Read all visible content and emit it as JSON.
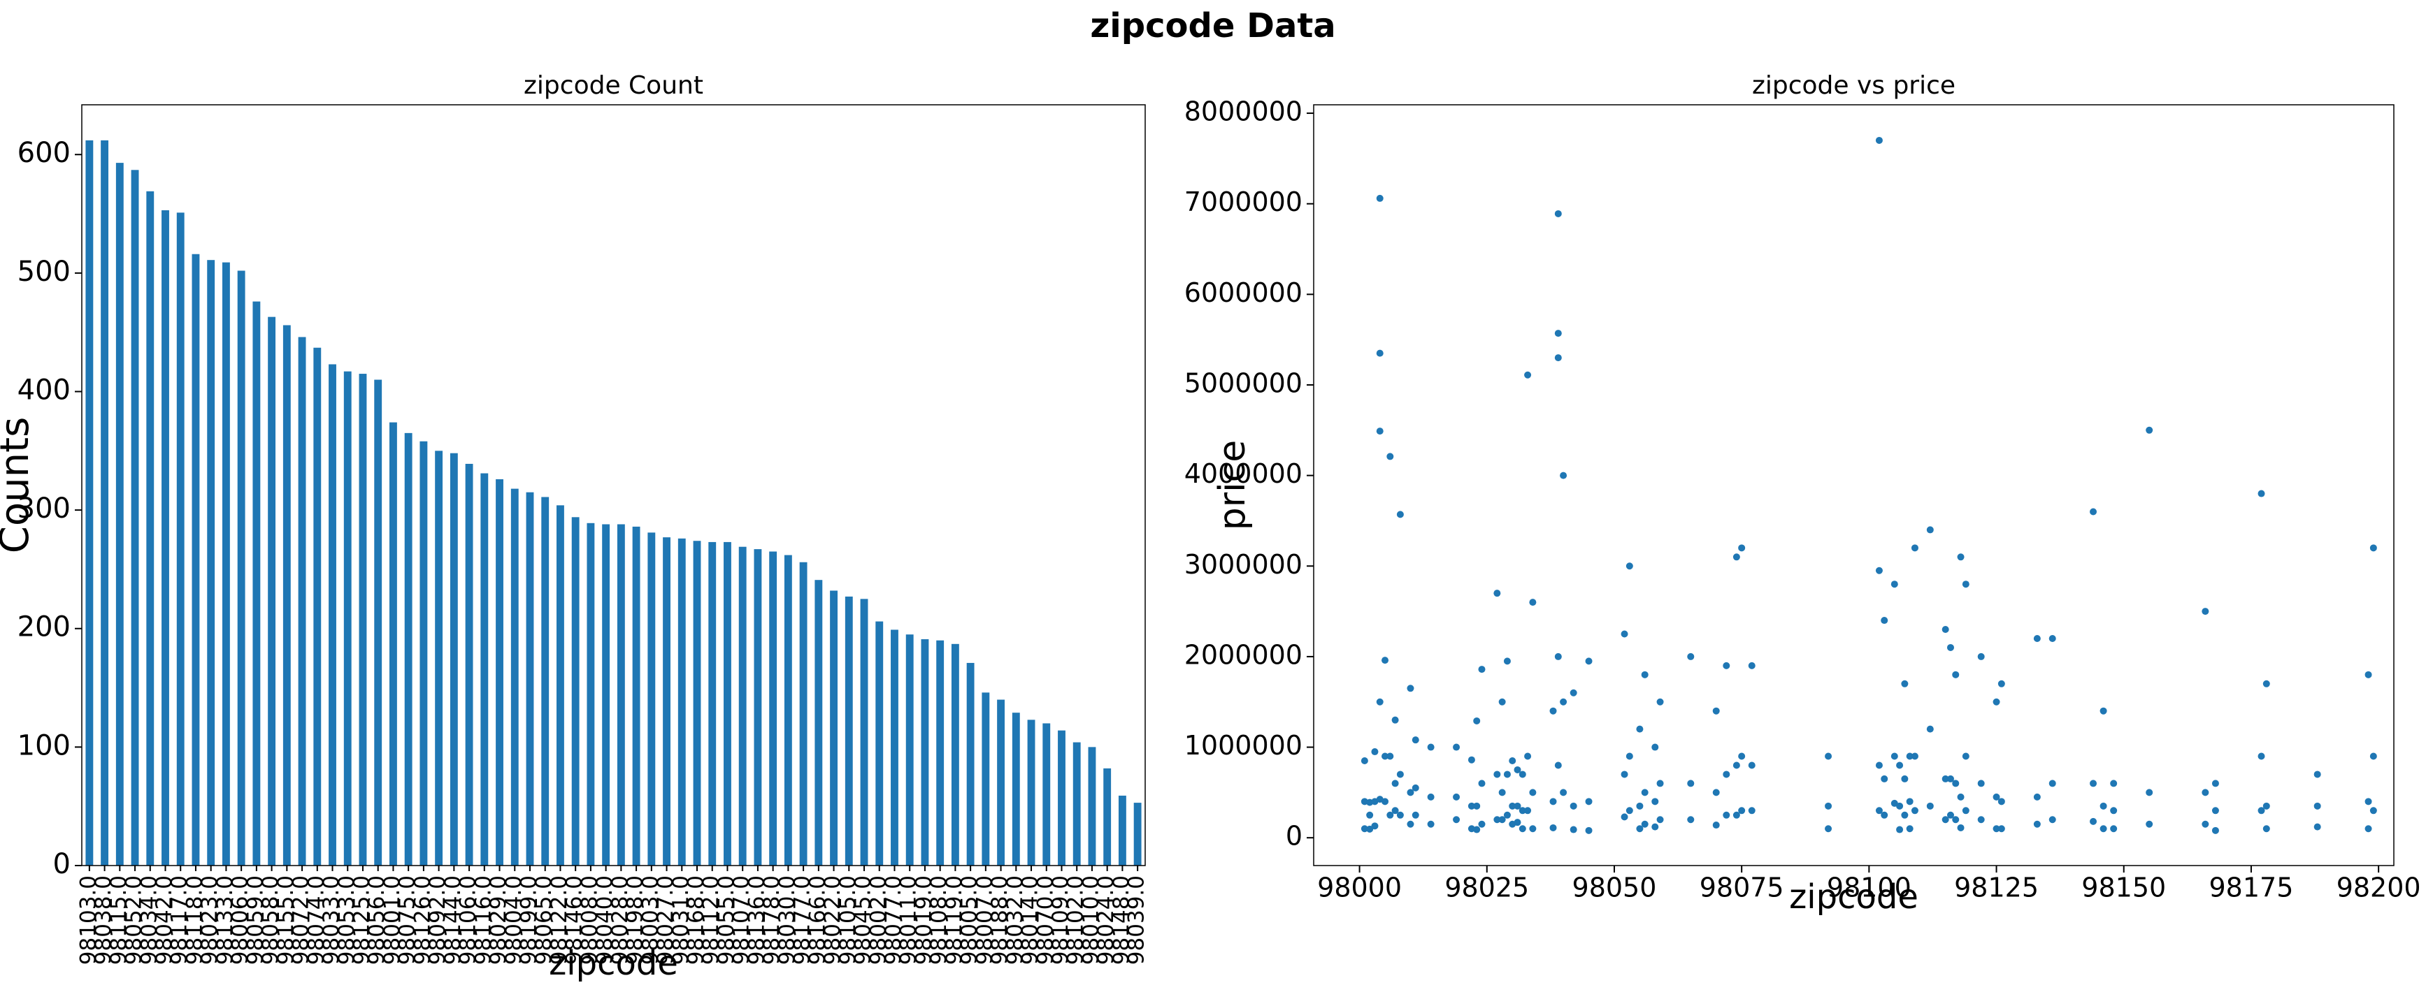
{
  "figure_title": "zipcode Data",
  "chart_data": [
    {
      "type": "bar",
      "title": "zipcode Count",
      "xlabel": "zipcode",
      "ylabel": "Counts",
      "color": "#1f77b4",
      "categories": [
        "98103.0",
        "98038.0",
        "98115.0",
        "98052.0",
        "98034.0",
        "98042.0",
        "98117.0",
        "98118.0",
        "98023.0",
        "98133.0",
        "98006.0",
        "98059.0",
        "98058.0",
        "98155.0",
        "98072.0",
        "98074.0",
        "98033.0",
        "98053.0",
        "98125.0",
        "98056.0",
        "98001.0",
        "98075.0",
        "98126.0",
        "98092.0",
        "98144.0",
        "98106.0",
        "98116.0",
        "98029.0",
        "98004.0",
        "98199.0",
        "98065.0",
        "98122.0",
        "98146.0",
        "98008.0",
        "98040.0",
        "98028.0",
        "98198.0",
        "98003.0",
        "98027.0",
        "98031.0",
        "98168.0",
        "98112.0",
        "98055.0",
        "98107.0",
        "98136.0",
        "98178.0",
        "98030.0",
        "98177.0",
        "98166.0",
        "98022.0",
        "98105.0",
        "98045.0",
        "98002.0",
        "98077.0",
        "98011.0",
        "98019.0",
        "98108.0",
        "98119.0",
        "98005.0",
        "98007.0",
        "98188.0",
        "98032.0",
        "98014.0",
        "98070.0",
        "98109.0",
        "98102.0",
        "98010.0",
        "98024.0",
        "98148.0",
        "98039.0"
      ],
      "values": [
        612,
        612,
        593,
        587,
        569,
        553,
        551,
        516,
        511,
        509,
        502,
        476,
        463,
        456,
        446,
        437,
        423,
        417,
        415,
        410,
        374,
        365,
        358,
        350,
        348,
        339,
        331,
        326,
        318,
        315,
        311,
        304,
        294,
        289,
        288,
        288,
        286,
        281,
        277,
        276,
        274,
        273,
        273,
        269,
        267,
        265,
        262,
        256,
        241,
        232,
        227,
        225,
        206,
        199,
        195,
        191,
        190,
        187,
        171,
        146,
        140,
        129,
        123,
        120,
        114,
        104,
        100,
        82,
        59,
        53
      ],
      "ylim": [
        0,
        642
      ],
      "yticks": [
        0,
        100,
        200,
        300,
        400,
        500,
        600
      ]
    },
    {
      "type": "scatter",
      "title": "zipcode vs price",
      "xlabel": "zipcode",
      "ylabel": "price",
      "color": "#1f77b4",
      "x": [
        98001,
        98001,
        98001,
        98002,
        98002,
        98002,
        98003,
        98003,
        98003,
        98004,
        98004,
        98004,
        98004,
        98004,
        98005,
        98005,
        98005,
        98006,
        98006,
        98006,
        98007,
        98007,
        98007,
        98008,
        98008,
        98008,
        98010,
        98010,
        98010,
        98011,
        98011,
        98011,
        98014,
        98014,
        98014,
        98019,
        98019,
        98019,
        98022,
        98022,
        98022,
        98023,
        98023,
        98023,
        98024,
        98024,
        98024,
        98027,
        98027,
        98027,
        98028,
        98028,
        98028,
        98029,
        98029,
        98029,
        98030,
        98030,
        98030,
        98031,
        98031,
        98031,
        98032,
        98032,
        98032,
        98033,
        98033,
        98033,
        98034,
        98034,
        98034,
        98038,
        98038,
        98038,
        98039,
        98039,
        98039,
        98039,
        98039,
        98040,
        98040,
        98040,
        98042,
        98042,
        98042,
        98045,
        98045,
        98045,
        98052,
        98052,
        98052,
        98053,
        98053,
        98053,
        98055,
        98055,
        98055,
        98056,
        98056,
        98056,
        98058,
        98058,
        98058,
        98059,
        98059,
        98059,
        98065,
        98065,
        98065,
        98070,
        98070,
        98070,
        98072,
        98072,
        98072,
        98074,
        98074,
        98074,
        98075,
        98075,
        98075,
        98077,
        98077,
        98077,
        98092,
        98092,
        98092,
        98102,
        98102,
        98102,
        98103,
        98103,
        98103,
        98105,
        98105,
        98105,
        98106,
        98106,
        98106,
        98107,
        98107,
        98107,
        98108,
        98108,
        98108,
        98109,
        98109,
        98109,
        98112,
        98112,
        98112,
        98115,
        98115,
        98115,
        98116,
        98116,
        98116,
        98117,
        98117,
        98117,
        98118,
        98118,
        98118,
        98119,
        98119,
        98119,
        98122,
        98122,
        98122,
        98125,
        98125,
        98125,
        98126,
        98126,
        98126,
        98133,
        98133,
        98133,
        98136,
        98136,
        98136,
        98144,
        98144,
        98144,
        98146,
        98146,
        98146,
        98148,
        98148,
        98148,
        98155,
        98155,
        98155,
        98166,
        98166,
        98166,
        98168,
        98168,
        98168,
        98177,
        98177,
        98177,
        98178,
        98178,
        98178,
        98188,
        98188,
        98188,
        98198,
        98198,
        98198,
        98199,
        98199,
        98199,
        98102
      ],
      "values": [
        100000,
        400000,
        850000,
        95000,
        250000,
        390000,
        130000,
        400000,
        950000,
        425000,
        1500000,
        4490000,
        5350000,
        7060000,
        400000,
        900000,
        1960000,
        250000,
        900000,
        4210000,
        300000,
        600000,
        1300000,
        250000,
        700000,
        3570000,
        150000,
        500000,
        1650000,
        250000,
        550000,
        1080000,
        150000,
        450000,
        1000000,
        200000,
        450000,
        1000000,
        100000,
        350000,
        860000,
        90000,
        350000,
        1290000,
        150000,
        600000,
        1860000,
        200000,
        700000,
        2700000,
        200000,
        500000,
        1500000,
        250000,
        700000,
        1950000,
        150000,
        350000,
        850000,
        170000,
        350000,
        750000,
        100000,
        300000,
        700000,
        300000,
        900000,
        5110000,
        100000,
        500000,
        2600000,
        110000,
        400000,
        1400000,
        800000,
        2000000,
        5300000,
        5570000,
        6890000,
        500000,
        1500000,
        4000000,
        90000,
        350000,
        1600000,
        80000,
        400000,
        1950000,
        230000,
        700000,
        2250000,
        300000,
        900000,
        3000000,
        100000,
        350000,
        1200000,
        150000,
        500000,
        1800000,
        120000,
        400000,
        1000000,
        200000,
        600000,
        1500000,
        200000,
        600000,
        2000000,
        140000,
        500000,
        1400000,
        250000,
        700000,
        1900000,
        250000,
        800000,
        3100000,
        300000,
        900000,
        3200000,
        300000,
        800000,
        1900000,
        100000,
        350000,
        900000,
        300000,
        800000,
        2950000,
        250000,
        650000,
        2400000,
        380000,
        900000,
        2800000,
        90000,
        350000,
        800000,
        250000,
        650000,
        1700000,
        100000,
        400000,
        900000,
        300000,
        900000,
        3200000,
        350000,
        1200000,
        3400000,
        200000,
        650000,
        2300000,
        250000,
        650000,
        2100000,
        200000,
        600000,
        1800000,
        110000,
        450000,
        3100000,
        300000,
        900000,
        2800000,
        200000,
        600000,
        2000000,
        100000,
        450000,
        1500000,
        100000,
        400000,
        1700000,
        150000,
        450000,
        2200000,
        200000,
        600000,
        2200000,
        180000,
        600000,
        3600000,
        100000,
        350000,
        1400000,
        100000,
        300000,
        600000,
        150000,
        500000,
        4500000,
        150000,
        500000,
        2500000,
        80000,
        300000,
        600000,
        300000,
        900000,
        3800000,
        100000,
        350000,
        1700000,
        120000,
        350000,
        700000,
        100000,
        400000,
        1800000,
        300000,
        900000,
        3200000,
        7700000
      ],
      "xlim": [
        97991,
        98203
      ],
      "xticks": [
        98000,
        98025,
        98050,
        98075,
        98100,
        98125,
        98150,
        98175,
        98200
      ],
      "ylim": [
        -307000,
        8093000
      ],
      "yticks": [
        0,
        1000000,
        2000000,
        3000000,
        4000000,
        5000000,
        6000000,
        7000000,
        8000000
      ]
    }
  ]
}
